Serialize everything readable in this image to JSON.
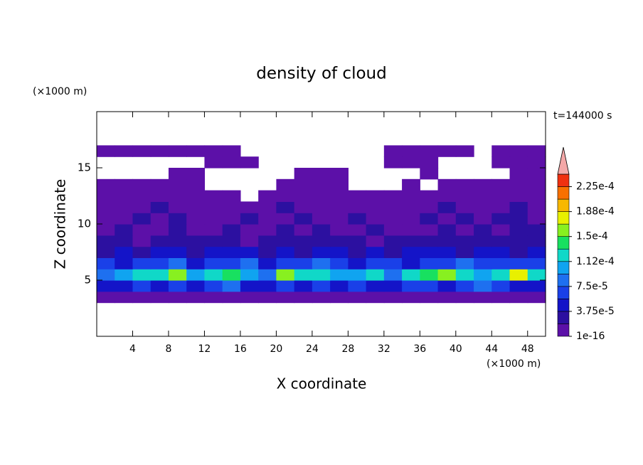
{
  "chart_data": {
    "type": "contour",
    "title": "density of cloud",
    "xlabel": "X coordinate",
    "ylabel": "Z coordinate",
    "x_unit": "(×1000 m)",
    "y_unit": "(×1000 m)",
    "annotation": "t=144000 s",
    "xlim": [
      0,
      50
    ],
    "ylim": [
      0,
      20
    ],
    "xticks": [
      4,
      8,
      12,
      16,
      20,
      24,
      28,
      32,
      36,
      40,
      44,
      48
    ],
    "yticks": [
      5,
      10,
      15
    ],
    "x": [
      1,
      3,
      5,
      7,
      9,
      11,
      13,
      15,
      17,
      19,
      21,
      23,
      25,
      27,
      29,
      31,
      33,
      35,
      37,
      39,
      41,
      43,
      45,
      47,
      49
    ],
    "y": [
      0.5,
      1.5,
      2.5,
      3.5,
      4.5,
      5.5,
      6.5,
      7.5,
      8.5,
      9.5,
      10.5,
      11.5,
      12.5,
      13.5,
      14.5,
      15.5,
      16.5,
      17.5,
      18.5,
      19.5
    ],
    "z": [
      [
        null,
        null,
        null,
        null,
        null,
        null,
        null,
        null,
        null,
        null,
        null,
        null,
        null,
        null,
        null,
        null,
        null,
        null,
        null,
        null,
        null,
        null,
        null,
        null,
        null
      ],
      [
        null,
        null,
        null,
        null,
        null,
        null,
        null,
        null,
        null,
        null,
        null,
        null,
        null,
        null,
        null,
        null,
        null,
        null,
        null,
        null,
        null,
        null,
        null,
        null,
        null
      ],
      [
        null,
        null,
        null,
        null,
        null,
        null,
        null,
        null,
        null,
        null,
        null,
        null,
        null,
        null,
        null,
        null,
        null,
        null,
        null,
        null,
        null,
        null,
        null,
        null,
        null
      ],
      [
        5e-06,
        5e-06,
        5e-06,
        5e-06,
        5e-06,
        5e-06,
        5e-06,
        5e-06,
        5e-06,
        5e-06,
        5e-06,
        5e-06,
        5e-06,
        5e-06,
        5e-06,
        5e-06,
        5e-06,
        5e-06,
        5e-06,
        5e-06,
        5e-06,
        5e-06,
        5e-06,
        5e-06,
        5e-06
      ],
      [
        4e-05,
        5e-05,
        6e-05,
        4e-05,
        7e-05,
        5e-05,
        6e-05,
        8e-05,
        5e-05,
        4e-05,
        6e-05,
        5e-05,
        7e-05,
        5e-05,
        6e-05,
        4e-05,
        5e-05,
        6e-05,
        7e-05,
        5e-05,
        6e-05,
        8e-05,
        6e-05,
        5e-05,
        4e-05
      ],
      [
        9e-05,
        0.00011,
        0.00013,
        0.00012,
        0.00016,
        0.0001,
        0.00012,
        0.00014,
        0.00011,
        9e-05,
        0.00015,
        0.00013,
        0.00012,
        0.0001,
        0.00011,
        0.00013,
        9e-05,
        0.00012,
        0.00014,
        0.00016,
        0.00012,
        0.0001,
        0.00013,
        0.00017,
        0.00012
      ],
      [
        6e-05,
        5e-05,
        7e-05,
        6e-05,
        8e-05,
        5e-05,
        7e-05,
        6e-05,
        9e-05,
        5e-05,
        6e-05,
        7e-05,
        8e-05,
        6e-05,
        5e-05,
        6e-05,
        7e-05,
        5e-05,
        6e-05,
        7e-05,
        8e-05,
        6e-05,
        7e-05,
        6e-05,
        7e-05
      ],
      [
        3e-05,
        4e-05,
        3e-05,
        5e-05,
        4e-05,
        3e-05,
        4e-05,
        5e-05,
        4e-05,
        3e-05,
        4e-05,
        3e-05,
        5e-05,
        4e-05,
        3e-05,
        4e-05,
        3e-05,
        4e-05,
        5e-05,
        4e-05,
        3e-05,
        4e-05,
        5e-05,
        3e-05,
        4e-05
      ],
      [
        2e-05,
        2.5e-05,
        1.5e-05,
        2e-05,
        3e-05,
        2e-05,
        2.5e-05,
        2e-05,
        1.5e-05,
        2e-05,
        2.5e-05,
        2e-05,
        3e-05,
        2e-05,
        2.5e-05,
        1.5e-05,
        2e-05,
        2.5e-05,
        2e-05,
        3e-05,
        2e-05,
        2e-05,
        2.5e-05,
        2e-05,
        2.5e-05
      ],
      [
        1e-05,
        2e-05,
        1e-05,
        1.5e-05,
        2e-05,
        1e-05,
        1e-05,
        2e-05,
        1e-05,
        1.5e-05,
        2e-05,
        1e-05,
        2e-05,
        1e-05,
        1e-05,
        2e-05,
        1e-05,
        1.5e-05,
        1e-05,
        2e-05,
        1e-05,
        2e-05,
        1.5e-05,
        2e-05,
        2e-05
      ],
      [
        5e-06,
        5e-06,
        2e-05,
        5e-06,
        2e-05,
        5e-06,
        5e-06,
        5e-06,
        2e-05,
        5e-06,
        5e-06,
        2e-05,
        5e-06,
        5e-06,
        2e-05,
        5e-06,
        5e-06,
        5e-06,
        2e-05,
        5e-06,
        2e-05,
        5e-06,
        2e-05,
        2e-05,
        5e-06
      ],
      [
        5e-06,
        5e-06,
        5e-06,
        2e-05,
        5e-06,
        5e-06,
        5e-06,
        5e-06,
        5e-06,
        5e-06,
        2e-05,
        5e-06,
        5e-06,
        5e-06,
        5e-06,
        5e-06,
        5e-06,
        5e-06,
        5e-06,
        2e-05,
        5e-06,
        5e-06,
        5e-06,
        2e-05,
        5e-06
      ],
      [
        5e-06,
        5e-06,
        5e-06,
        5e-06,
        5e-06,
        5e-06,
        5e-06,
        5e-06,
        null,
        5e-06,
        5e-06,
        5e-06,
        5e-06,
        5e-06,
        5e-06,
        5e-06,
        5e-06,
        5e-06,
        5e-06,
        5e-06,
        5e-06,
        5e-06,
        5e-06,
        5e-06,
        5e-06
      ],
      [
        5e-06,
        5e-06,
        5e-06,
        5e-06,
        5e-06,
        5e-06,
        null,
        null,
        null,
        null,
        5e-06,
        5e-06,
        5e-06,
        5e-06,
        null,
        null,
        null,
        5e-06,
        null,
        5e-06,
        5e-06,
        5e-06,
        5e-06,
        5e-06,
        5e-06
      ],
      [
        null,
        null,
        null,
        null,
        5e-06,
        5e-06,
        null,
        null,
        null,
        null,
        null,
        5e-06,
        5e-06,
        5e-06,
        null,
        null,
        null,
        null,
        5e-06,
        null,
        null,
        null,
        null,
        5e-06,
        5e-06
      ],
      [
        null,
        null,
        null,
        null,
        null,
        null,
        5e-06,
        5e-06,
        5e-06,
        null,
        null,
        null,
        null,
        null,
        null,
        null,
        5e-06,
        5e-06,
        5e-06,
        null,
        null,
        null,
        5e-06,
        5e-06,
        5e-06
      ],
      [
        5e-06,
        5e-06,
        5e-06,
        5e-06,
        5e-06,
        5e-06,
        5e-06,
        5e-06,
        null,
        null,
        null,
        null,
        null,
        null,
        null,
        null,
        5e-06,
        5e-06,
        5e-06,
        5e-06,
        5e-06,
        null,
        5e-06,
        5e-06,
        5e-06
      ],
      [
        null,
        null,
        null,
        null,
        null,
        null,
        null,
        null,
        null,
        null,
        null,
        null,
        null,
        null,
        null,
        null,
        null,
        null,
        null,
        null,
        null,
        null,
        null,
        null,
        null
      ],
      [
        null,
        null,
        null,
        null,
        null,
        null,
        null,
        null,
        null,
        null,
        null,
        null,
        null,
        null,
        null,
        null,
        null,
        null,
        null,
        null,
        null,
        null,
        null,
        null,
        null
      ],
      [
        null,
        null,
        null,
        null,
        null,
        null,
        null,
        null,
        null,
        null,
        null,
        null,
        null,
        null,
        null,
        null,
        null,
        null,
        null,
        null,
        null,
        null,
        null,
        null,
        null
      ]
    ],
    "levels": [
      1e-16,
      1.875e-05,
      3.75e-05,
      5.625e-05,
      7.5e-05,
      9.375e-05,
      0.0001125,
      0.00013125,
      0.00015,
      0.00016875,
      0.0001875,
      0.00020625,
      0.000225,
      0.00024375
    ],
    "colors": [
      "#5c10a8",
      "#2c10a0",
      "#1414c8",
      "#1a40e8",
      "#1e70f0",
      "#10a4f0",
      "#10d8c8",
      "#18e060",
      "#88f020",
      "#e8f000",
      "#f8b800",
      "#f87000",
      "#f03010"
    ],
    "extend_color": "#f4a8a8",
    "cbar_ticks": [
      {
        "value": 1e-16,
        "label": "1e-16"
      },
      {
        "value": 3.75e-05,
        "label": "3.75e-5"
      },
      {
        "value": 7.5e-05,
        "label": "7.5e-5"
      },
      {
        "value": 0.0001125,
        "label": "1.12e-4"
      },
      {
        "value": 0.00015,
        "label": "1.5e-4"
      },
      {
        "value": 0.0001875,
        "label": "1.88e-4"
      },
      {
        "value": 0.000225,
        "label": "2.25e-4"
      }
    ]
  }
}
